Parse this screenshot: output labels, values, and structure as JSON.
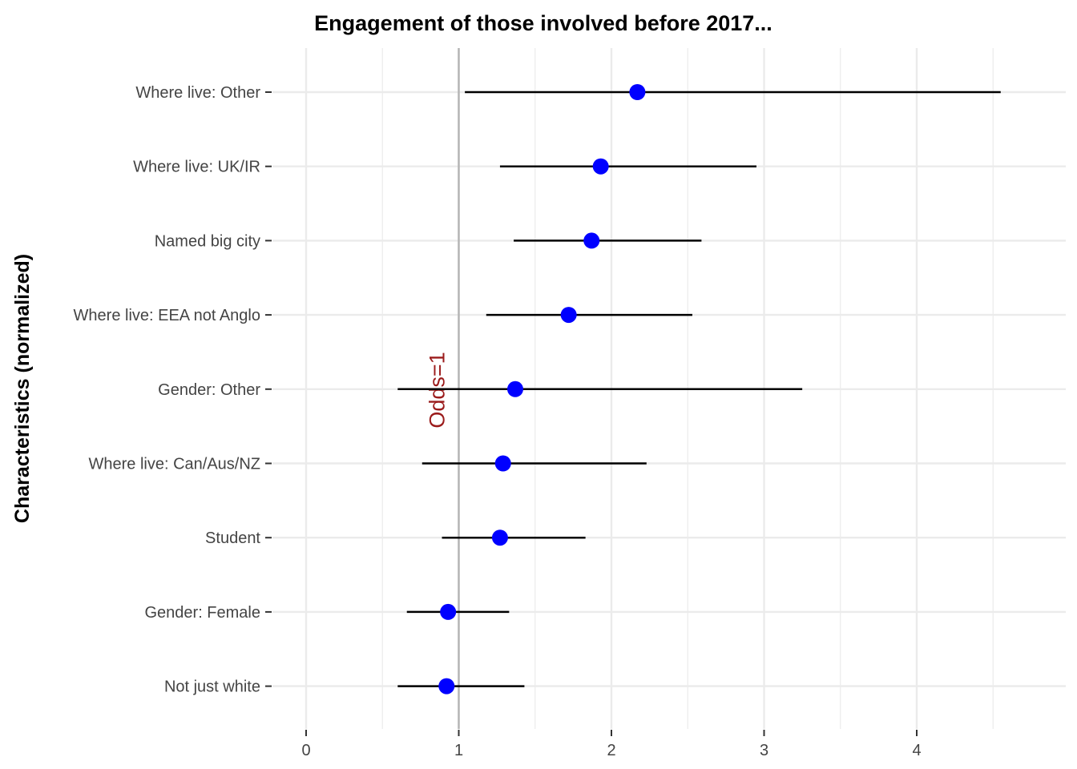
{
  "chart_data": {
    "type": "scatter",
    "title": "Engagement of those involved before 2017...",
    "xlabel": "",
    "ylabel": "Characteristics (normalized)",
    "xlim": [
      -0.23,
      4.98
    ],
    "x_ticks": [
      "0",
      "1",
      "2",
      "3",
      "4"
    ],
    "x_tick_values": [
      0,
      1,
      2,
      3,
      4
    ],
    "grid": true,
    "reference_line": {
      "x": 1,
      "label": "Odds=1",
      "label_color": "#9B1B1B",
      "line_color": "#B3B3B3"
    },
    "point_color": "#0000FF",
    "errorbar_color": "#000000",
    "categories": [
      "Where live: Other",
      "Where live: UK/IR",
      "Named big city",
      "Where live: EEA not Anglo",
      "Gender: Other",
      "Where live: Can/Aus/NZ",
      "Student",
      "Gender: Female",
      "Not just white"
    ],
    "estimates": [
      2.17,
      1.93,
      1.87,
      1.72,
      1.37,
      1.29,
      1.27,
      0.93,
      0.92
    ],
    "ci_low": [
      1.04,
      1.27,
      1.36,
      1.18,
      0.6,
      0.76,
      0.89,
      0.66,
      0.6
    ],
    "ci_high": [
      4.55,
      2.95,
      2.59,
      2.53,
      3.25,
      2.23,
      1.83,
      1.33,
      1.43
    ]
  }
}
